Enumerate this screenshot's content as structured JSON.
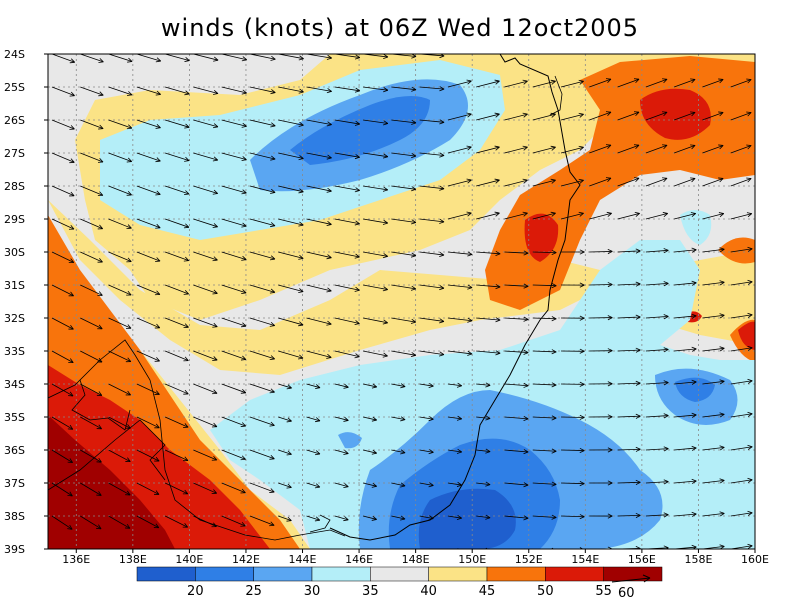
{
  "title": "winds (knots) at 06Z Wed 12oct2005",
  "map": {
    "lat_labels": [
      "24S",
      "25S",
      "26S",
      "27S",
      "28S",
      "29S",
      "30S",
      "31S",
      "32S",
      "33S",
      "34S",
      "35S",
      "36S",
      "37S",
      "38S",
      "39S"
    ],
    "lon_labels": [
      "136E",
      "138E",
      "140E",
      "142E",
      "144E",
      "146E",
      "148E",
      "150E",
      "152E",
      "154E",
      "156E",
      "158E",
      "160E"
    ],
    "colors": {
      "lt20": "#1f5fce",
      "c20_25": "#2f7fe6",
      "c25_30": "#5aa6f2",
      "c30_35": "#b4eef8",
      "c35_40": "#e8e8e8",
      "c40_45": "#fbe386",
      "c45_50": "#f8740c",
      "c50_55": "#db1a08",
      "gt55": "#a00000"
    }
  },
  "colorbar": {
    "labels": [
      "20",
      "25",
      "30",
      "35",
      "40",
      "45",
      "50",
      "55"
    ],
    "colors": [
      "#1f5fce",
      "#2f7fe6",
      "#5aa6f2",
      "#b4eef8",
      "#e8e8e8",
      "#fbe386",
      "#f8740c",
      "#db1a08",
      "#a00000"
    ]
  },
  "reference_vector": {
    "label": "60"
  }
}
